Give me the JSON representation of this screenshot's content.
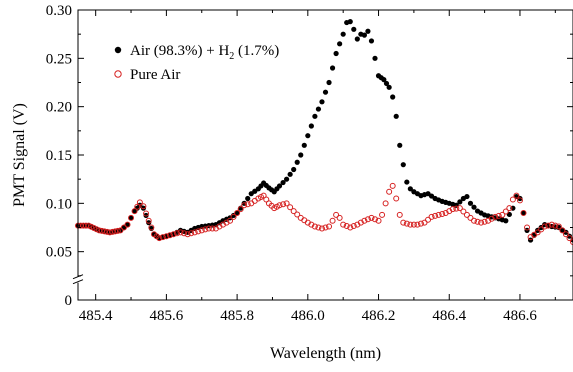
{
  "chart_data": {
    "type": "scatter",
    "title": "",
    "xlabel": "Wavelength (nm)",
    "ylabel": "PMT Signal (V)",
    "xlim": [
      485.35,
      486.75
    ],
    "ylim": [
      0,
      0.3
    ],
    "x_ticks": [
      485.4,
      485.6,
      485.8,
      486.0,
      486.2,
      486.4,
      486.6
    ],
    "x_tick_labels": [
      "485.4",
      "485.6",
      "485.8",
      "486.0",
      "486.2",
      "486.4",
      "486.6"
    ],
    "y_ticks": [
      0,
      0.05,
      0.1,
      0.15,
      0.2,
      0.25,
      0.3
    ],
    "y_tick_labels": [
      "0",
      "0.05",
      "0.10",
      "0.15",
      "0.20",
      "0.25",
      "0.30"
    ],
    "y_axis_break": true,
    "grid": false,
    "legend_position": "top-left",
    "series": [
      {
        "name": "Air (98.3%) + H",
        "name_subscript": "2",
        "name_suffix": " (1.7%)",
        "marker": "filled-circle",
        "color": "#000000",
        "points": [
          [
            485.35,
            0.077
          ],
          [
            485.38,
            0.077
          ],
          [
            485.41,
            0.072
          ],
          [
            485.44,
            0.07
          ],
          [
            485.47,
            0.072
          ],
          [
            485.49,
            0.078
          ],
          [
            485.51,
            0.092
          ],
          [
            485.525,
            0.098
          ],
          [
            485.535,
            0.095
          ],
          [
            485.55,
            0.08
          ],
          [
            485.565,
            0.068
          ],
          [
            485.58,
            0.064
          ],
          [
            485.6,
            0.066
          ],
          [
            485.62,
            0.068
          ],
          [
            485.64,
            0.072
          ],
          [
            485.66,
            0.07
          ],
          [
            485.68,
            0.074
          ],
          [
            485.7,
            0.076
          ],
          [
            485.72,
            0.077
          ],
          [
            485.74,
            0.078
          ],
          [
            485.76,
            0.082
          ],
          [
            485.78,
            0.085
          ],
          [
            485.8,
            0.09
          ],
          [
            485.82,
            0.1
          ],
          [
            485.84,
            0.11
          ],
          [
            485.86,
            0.115
          ],
          [
            485.875,
            0.121
          ],
          [
            485.89,
            0.116
          ],
          [
            485.905,
            0.112
          ],
          [
            485.92,
            0.118
          ],
          [
            485.94,
            0.125
          ],
          [
            485.96,
            0.135
          ],
          [
            485.98,
            0.15
          ],
          [
            486.0,
            0.17
          ],
          [
            486.02,
            0.19
          ],
          [
            486.04,
            0.205
          ],
          [
            486.06,
            0.225
          ],
          [
            486.08,
            0.255
          ],
          [
            486.1,
            0.275
          ],
          [
            486.11,
            0.287
          ],
          [
            486.12,
            0.288
          ],
          [
            486.13,
            0.28
          ],
          [
            486.14,
            0.27
          ],
          [
            486.15,
            0.275
          ],
          [
            486.16,
            0.274
          ],
          [
            486.17,
            0.278
          ],
          [
            486.18,
            0.268
          ],
          [
            486.19,
            0.25
          ],
          [
            486.2,
            0.232
          ],
          [
            486.215,
            0.228
          ],
          [
            486.23,
            0.22
          ],
          [
            486.24,
            0.21
          ],
          [
            486.25,
            0.19
          ],
          [
            486.26,
            0.16
          ],
          [
            486.27,
            0.14
          ],
          [
            486.28,
            0.122
          ],
          [
            486.29,
            0.115
          ],
          [
            486.3,
            0.112
          ],
          [
            486.32,
            0.108
          ],
          [
            486.34,
            0.11
          ],
          [
            486.36,
            0.105
          ],
          [
            486.38,
            0.102
          ],
          [
            486.4,
            0.1
          ],
          [
            486.42,
            0.098
          ],
          [
            486.44,
            0.105
          ],
          [
            486.45,
            0.107
          ],
          [
            486.46,
            0.1
          ],
          [
            486.48,
            0.092
          ],
          [
            486.5,
            0.088
          ],
          [
            486.52,
            0.086
          ],
          [
            486.54,
            0.084
          ],
          [
            486.56,
            0.082
          ],
          [
            486.58,
            0.095
          ],
          [
            486.59,
            0.107
          ],
          [
            486.6,
            0.105
          ],
          [
            486.61,
            0.09
          ],
          [
            486.62,
            0.072
          ],
          [
            486.63,
            0.062
          ],
          [
            486.65,
            0.072
          ],
          [
            486.67,
            0.078
          ],
          [
            486.69,
            0.076
          ],
          [
            486.71,
            0.075
          ],
          [
            486.73,
            0.07
          ],
          [
            486.75,
            0.062
          ]
        ]
      },
      {
        "name": "Pure Air",
        "marker": "open-circle",
        "color": "#d62020",
        "points": [
          [
            485.35,
            0.077
          ],
          [
            485.38,
            0.077
          ],
          [
            485.41,
            0.072
          ],
          [
            485.44,
            0.07
          ],
          [
            485.47,
            0.072
          ],
          [
            485.49,
            0.078
          ],
          [
            485.51,
            0.092
          ],
          [
            485.525,
            0.101
          ],
          [
            485.535,
            0.097
          ],
          [
            485.55,
            0.082
          ],
          [
            485.565,
            0.068
          ],
          [
            485.58,
            0.064
          ],
          [
            485.6,
            0.066
          ],
          [
            485.62,
            0.068
          ],
          [
            485.64,
            0.07
          ],
          [
            485.66,
            0.068
          ],
          [
            485.68,
            0.07
          ],
          [
            485.7,
            0.072
          ],
          [
            485.72,
            0.074
          ],
          [
            485.74,
            0.074
          ],
          [
            485.76,
            0.078
          ],
          [
            485.78,
            0.082
          ],
          [
            485.8,
            0.09
          ],
          [
            485.82,
            0.098
          ],
          [
            485.84,
            0.1
          ],
          [
            485.86,
            0.105
          ],
          [
            485.875,
            0.108
          ],
          [
            485.89,
            0.1
          ],
          [
            485.905,
            0.095
          ],
          [
            485.92,
            0.098
          ],
          [
            485.94,
            0.1
          ],
          [
            485.96,
            0.092
          ],
          [
            485.98,
            0.085
          ],
          [
            486.0,
            0.08
          ],
          [
            486.02,
            0.076
          ],
          [
            486.04,
            0.074
          ],
          [
            486.06,
            0.076
          ],
          [
            486.07,
            0.082
          ],
          [
            486.08,
            0.088
          ],
          [
            486.09,
            0.085
          ],
          [
            486.1,
            0.078
          ],
          [
            486.12,
            0.075
          ],
          [
            486.14,
            0.078
          ],
          [
            486.16,
            0.082
          ],
          [
            486.18,
            0.085
          ],
          [
            486.2,
            0.082
          ],
          [
            486.21,
            0.088
          ],
          [
            486.22,
            0.1
          ],
          [
            486.23,
            0.112
          ],
          [
            486.24,
            0.118
          ],
          [
            486.25,
            0.105
          ],
          [
            486.26,
            0.088
          ],
          [
            486.27,
            0.08
          ],
          [
            486.29,
            0.078
          ],
          [
            486.31,
            0.078
          ],
          [
            486.33,
            0.08
          ],
          [
            486.35,
            0.086
          ],
          [
            486.37,
            0.088
          ],
          [
            486.39,
            0.09
          ],
          [
            486.41,
            0.094
          ],
          [
            486.43,
            0.095
          ],
          [
            486.45,
            0.088
          ],
          [
            486.47,
            0.082
          ],
          [
            486.49,
            0.08
          ],
          [
            486.51,
            0.082
          ],
          [
            486.53,
            0.086
          ],
          [
            486.55,
            0.088
          ],
          [
            486.57,
            0.095
          ],
          [
            486.58,
            0.104
          ],
          [
            486.59,
            0.108
          ],
          [
            486.6,
            0.103
          ],
          [
            486.61,
            0.09
          ],
          [
            486.62,
            0.075
          ],
          [
            486.63,
            0.065
          ],
          [
            486.65,
            0.07
          ],
          [
            486.67,
            0.076
          ],
          [
            486.69,
            0.078
          ],
          [
            486.71,
            0.076
          ],
          [
            486.73,
            0.068
          ],
          [
            486.75,
            0.06
          ]
        ]
      }
    ]
  }
}
